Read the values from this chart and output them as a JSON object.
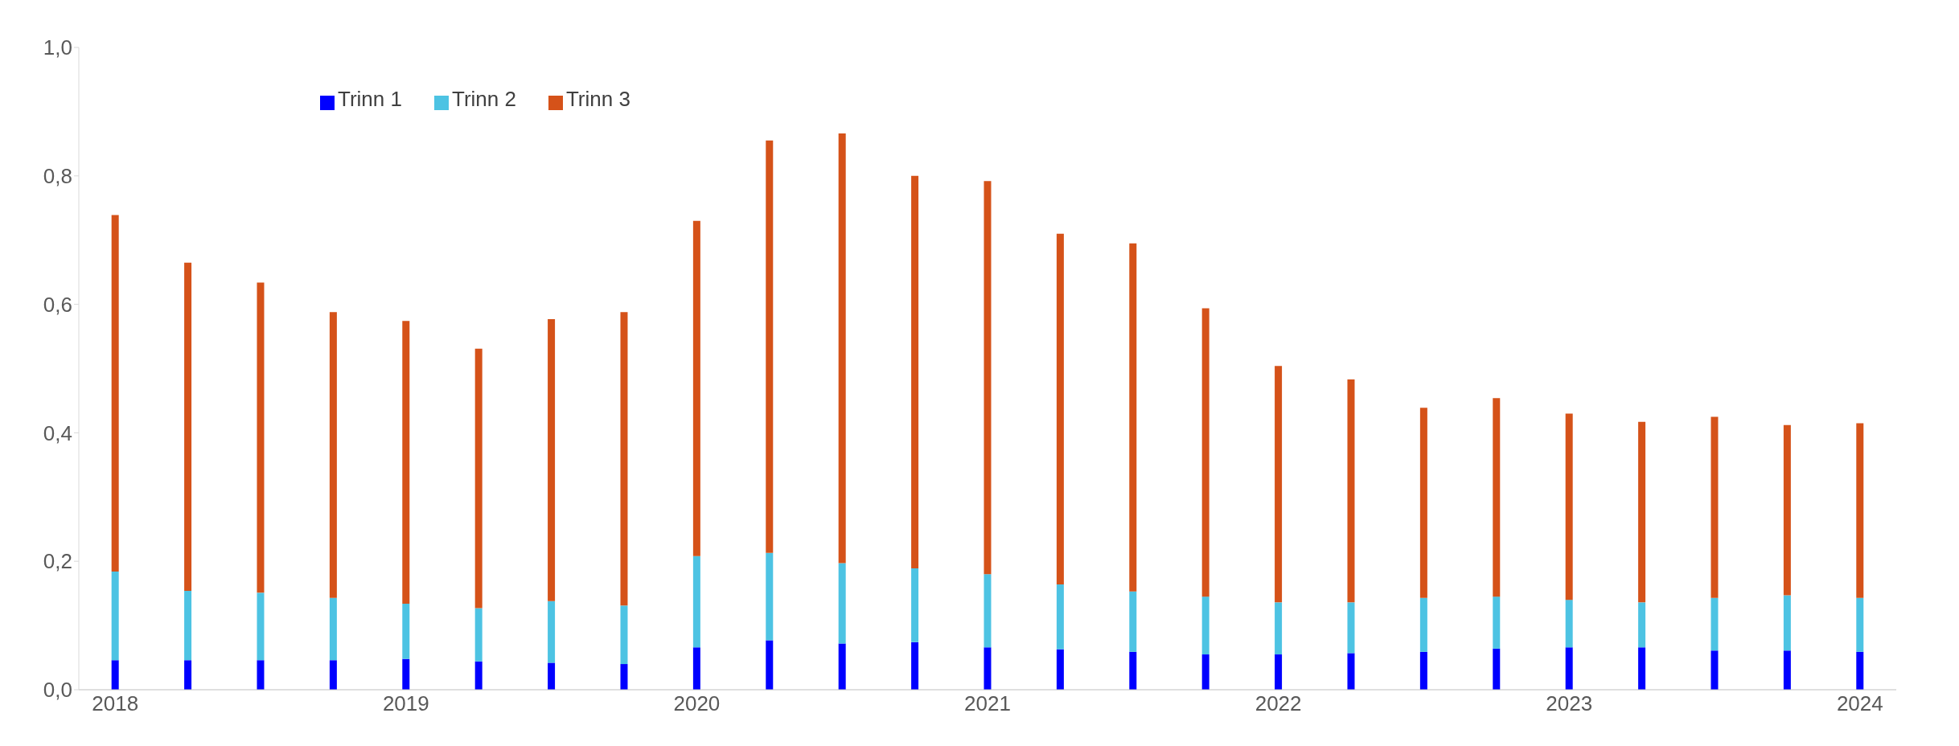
{
  "chart_data": {
    "type": "bar",
    "stacked": true,
    "categories": [
      "2018",
      null,
      null,
      null,
      "2019",
      null,
      null,
      null,
      "2020",
      null,
      null,
      null,
      "2021",
      null,
      null,
      null,
      "2022",
      null,
      null,
      null,
      "2023",
      null,
      null,
      null,
      "2024"
    ],
    "series": [
      {
        "name": "Trinn 1",
        "color": "#0000ff",
        "values": [
          0.046,
          0.046,
          0.046,
          0.046,
          0.048,
          0.044,
          0.042,
          0.04,
          0.066,
          0.077,
          0.072,
          0.074,
          0.066,
          0.063,
          0.059,
          0.055,
          0.055,
          0.057,
          0.059,
          0.064,
          0.066,
          0.066,
          0.061,
          0.061,
          0.059
        ]
      },
      {
        "name": "Trinn 2",
        "color": "#4dc3e3",
        "values": [
          0.138,
          0.108,
          0.105,
          0.097,
          0.086,
          0.083,
          0.096,
          0.091,
          0.142,
          0.136,
          0.125,
          0.115,
          0.114,
          0.101,
          0.094,
          0.09,
          0.081,
          0.079,
          0.084,
          0.081,
          0.074,
          0.07,
          0.082,
          0.086,
          0.084
        ]
      },
      {
        "name": "Trinn 3",
        "color": "#d55219",
        "values": [
          0.555,
          0.511,
          0.483,
          0.445,
          0.44,
          0.404,
          0.439,
          0.457,
          0.522,
          0.642,
          0.669,
          0.611,
          0.612,
          0.546,
          0.542,
          0.449,
          0.368,
          0.347,
          0.296,
          0.309,
          0.29,
          0.281,
          0.282,
          0.265,
          0.272
        ]
      }
    ],
    "ylim": [
      0,
      1
    ],
    "yticks": [
      {
        "value": 0,
        "label": "0,0"
      },
      {
        "value": 0.2,
        "label": "0,2"
      },
      {
        "value": 0.4,
        "label": "0,4"
      },
      {
        "value": 0.6,
        "label": "0,6"
      },
      {
        "value": 0.8,
        "label": "0,8"
      },
      {
        "value": 1,
        "label": "1,0"
      }
    ],
    "grid": false,
    "legend": "top left"
  }
}
